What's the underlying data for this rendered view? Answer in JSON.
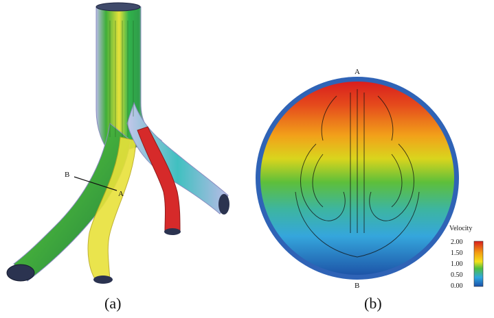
{
  "panels": {
    "a": {
      "caption": "(a)",
      "section_labels": {
        "start": "B",
        "end": "A"
      }
    },
    "b": {
      "caption": "(b)",
      "points": {
        "top": "A",
        "bottom": "B"
      },
      "colorbar": {
        "title": "Velocity",
        "ticks": [
          "2.00",
          "1.50",
          "1.00",
          "0.50",
          "0.00"
        ],
        "colors": [
          "#d81e1e",
          "#f39c12",
          "#f4e11b",
          "#4fbf3f",
          "#2ea7e0",
          "#1b4fa8"
        ]
      }
    }
  }
}
